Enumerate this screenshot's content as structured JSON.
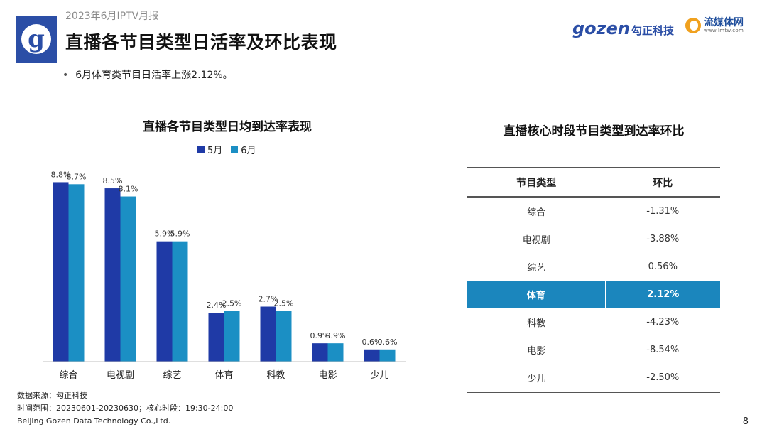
{
  "header": {
    "report_label": "2023年6月IPTV月报",
    "title": "直播各节目类型日活率及环比表现",
    "bullet": "6月体育类节目日活率上涨2.12%。",
    "logo_letter": "g",
    "brand_gozen_text": "gozen",
    "brand_gozen_cn": "勾正科技",
    "brand_lmtw_cn": "流媒体网",
    "brand_lmtw_url": "www.lmtw.com"
  },
  "chart_data": {
    "type": "bar",
    "title": "直播各节目类型日均到达率表现",
    "categories": [
      "综合",
      "电视剧",
      "综艺",
      "体育",
      "科教",
      "电影",
      "少儿"
    ],
    "series": [
      {
        "name": "5月",
        "values": [
          8.8,
          8.5,
          5.9,
          2.4,
          2.7,
          0.9,
          0.6
        ],
        "labels": [
          "8.8%",
          "8.5%",
          "5.9%",
          "2.4%",
          "2.7%",
          "0.9%",
          "0.6%"
        ],
        "color": "#1f3aa6"
      },
      {
        "name": "6月",
        "values": [
          8.7,
          8.1,
          5.9,
          2.5,
          2.5,
          0.9,
          0.6
        ],
        "labels": [
          "8.7%",
          "8.1%",
          "5.9%",
          "2.5%",
          "2.5%",
          "0.9%",
          "0.6%"
        ],
        "color": "#1b8fc4"
      }
    ],
    "xlabel": "",
    "ylabel": "",
    "ylim": [
      0,
      10
    ],
    "legend": "top-center",
    "grid": false
  },
  "table": {
    "title": "直播核心时段节目类型到达率环比",
    "headers": [
      "节目类型",
      "环比"
    ],
    "rows": [
      [
        "综合",
        "-1.31%"
      ],
      [
        "电视剧",
        "-3.88%"
      ],
      [
        "综艺",
        "0.56%"
      ],
      [
        "体育",
        "2.12%"
      ],
      [
        "科教",
        "-4.23%"
      ],
      [
        "电影",
        "-8.54%"
      ],
      [
        "少儿",
        "-2.50%"
      ]
    ],
    "highlight_color": "#1b86bd"
  },
  "footer": {
    "source": "数据来源：勾正科技",
    "range": "时间范围：20230601-20230630；核心时段：19:30-24:00",
    "company": "Beijing Gozen Data Technology Co.,Ltd.",
    "page_number": "8"
  }
}
